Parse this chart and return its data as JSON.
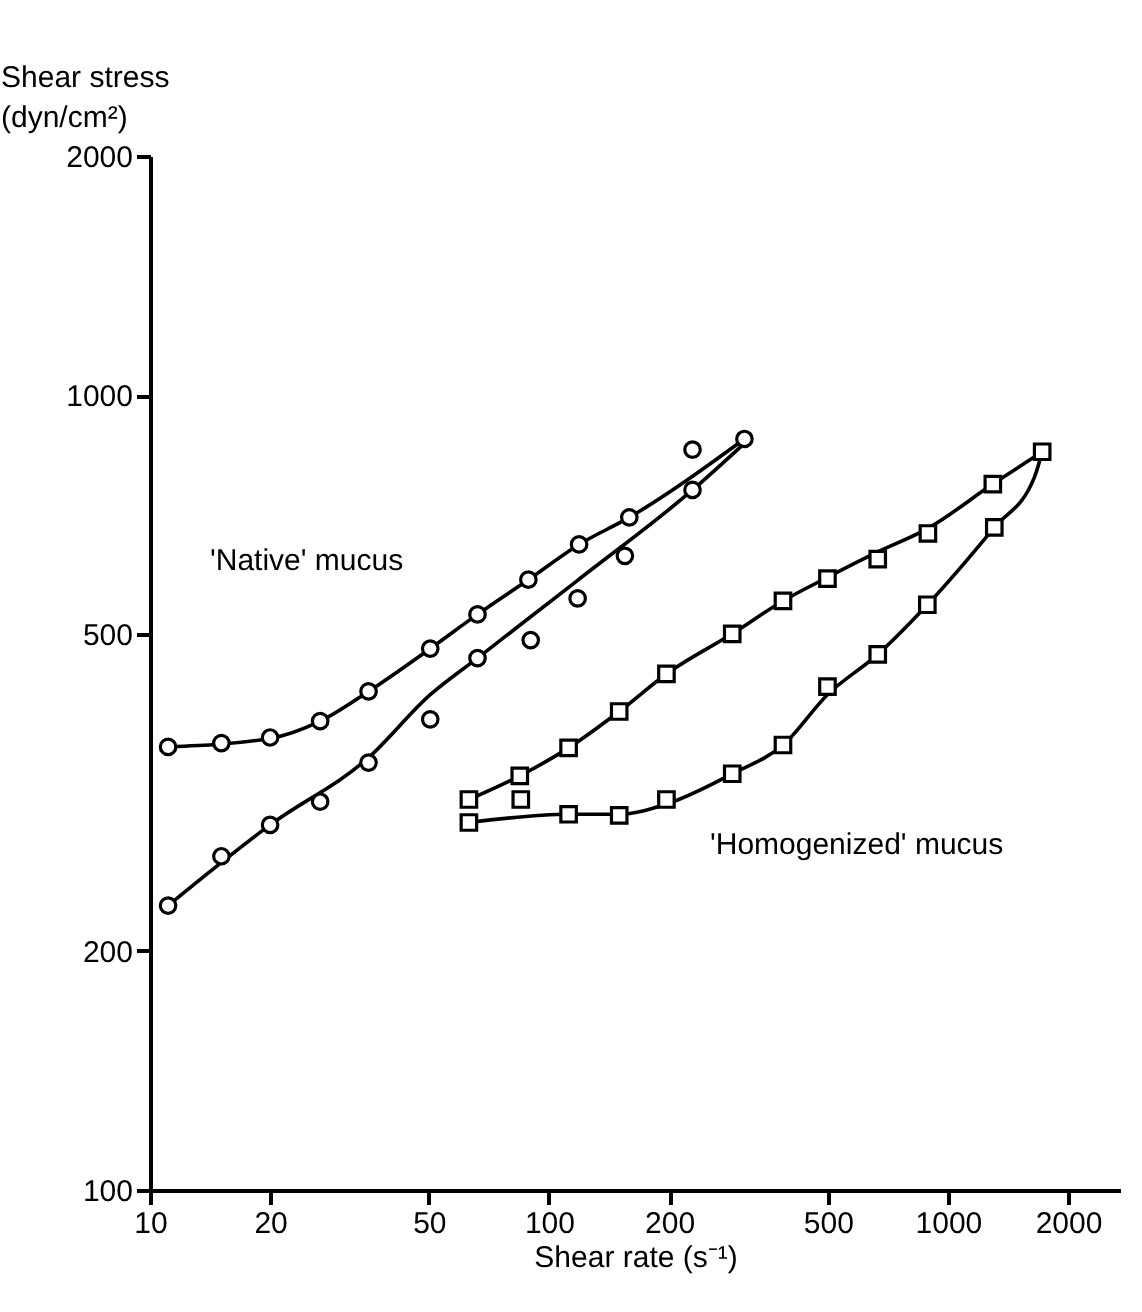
{
  "chart_data": {
    "type": "scatter",
    "xlabel": "Shear rate (s⁻¹)",
    "ylabel": "Shear stress (dyn/cm²)",
    "log": "xy",
    "grid": false,
    "xlim": [
      10,
      2700
    ],
    "xticks": [
      10,
      20,
      50,
      100,
      200,
      500,
      1000,
      2000
    ],
    "ylim": [
      100,
      2000
    ],
    "yticks": [
      100,
      200,
      500,
      1000,
      2000
    ],
    "series": [
      {
        "marker": "circle",
        "color": "#000000",
        "x": [
          11.1,
          15.1,
          20.0,
          26.7,
          35.3,
          50.4,
          66.2,
          88.8,
          119,
          159,
          229,
          309,
          229,
          155,
          118,
          90,
          66.2,
          50.4,
          35.3,
          26.7,
          20.0,
          15.1,
          11.1
        ],
        "values": [
          361,
          365,
          371,
          389,
          424,
          480,
          530,
          586,
          649,
          702,
          854,
          881,
          760,
          628,
          555,
          492,
          467,
          391,
          345,
          308,
          288,
          263,
          228
        ]
      },
      {
        "marker": "square",
        "color": "#000000",
        "x": [
          63,
          84.5,
          112,
          150,
          197,
          288,
          386,
          499,
          667,
          891,
          1296,
          1723,
          1307,
          888,
          667,
          499,
          386,
          288,
          197,
          150,
          112,
          85,
          63
        ],
        "values": [
          310,
          332,
          360,
          400,
          446,
          501,
          551,
          588,
          622,
          670,
          773,
          849,
          682,
          545,
          472,
          430,
          363,
          334,
          310,
          296,
          297,
          310,
          290
        ]
      },
      {
        "type": "line",
        "marker": "none",
        "line_style": "solid",
        "color": "#000000",
        "x": [
          11.1,
          20,
          26.7,
          35.3,
          50.4,
          66.2,
          88.8,
          119,
          159,
          309
        ],
        "values": [
          361,
          370,
          389,
          424,
          480,
          530,
          586,
          649,
          702,
          881
        ]
      },
      {
        "type": "line",
        "marker": "none",
        "line_style": "solid",
        "color": "#000000",
        "x": [
          11.1,
          20,
          35.3,
          50.4,
          66.2,
          118,
          229,
          309
        ],
        "values": [
          228,
          288,
          350,
          420,
          467,
          585,
          760,
          870
        ]
      },
      {
        "type": "line",
        "marker": "none",
        "line_style": "solid",
        "color": "#000000",
        "x": [
          63,
          84.5,
          112,
          150,
          197,
          288,
          386,
          499,
          667,
          891,
          1296,
          1723
        ],
        "values": [
          310,
          332,
          360,
          400,
          446,
          501,
          551,
          590,
          635,
          680,
          773,
          849
        ]
      },
      {
        "type": "line",
        "marker": "none",
        "line_style": "solid",
        "color": "#000000",
        "x": [
          1723,
          1650,
          1307,
          888,
          667,
          499,
          386,
          288,
          197,
          150,
          112,
          63
        ],
        "values": [
          849,
          790,
          682,
          545,
          472,
          420,
          363,
          334,
          306,
          297,
          297,
          290
        ]
      }
    ],
    "annotations": [
      "'Native' mucus",
      "'Homogenized' mucus"
    ]
  }
}
